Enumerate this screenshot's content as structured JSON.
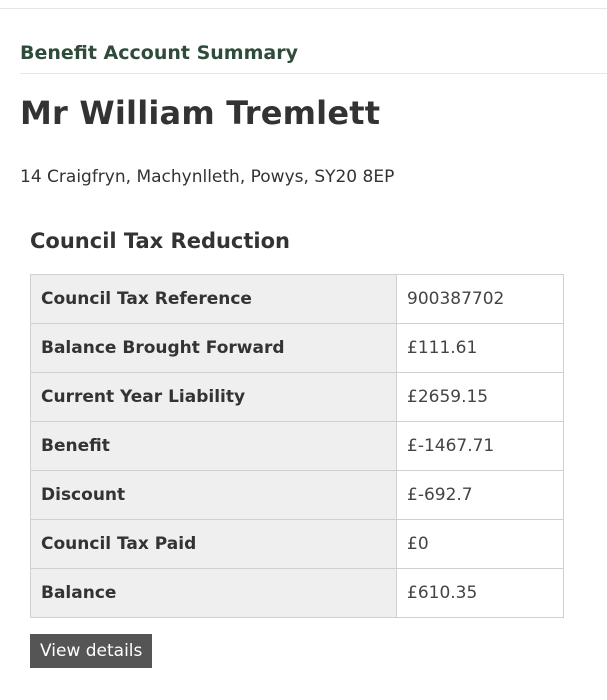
{
  "page": {
    "section_heading": "Benefit Account Summary",
    "name": "Mr William Tremlett",
    "address": "14 Craigfryn, Machynlleth, Powys, SY20 8EP"
  },
  "council_tax": {
    "heading": "Council Tax Reduction",
    "rows": [
      {
        "label": "Council Tax Reference",
        "value": "900387702"
      },
      {
        "label": "Balance Brought Forward",
        "value": "£111.61"
      },
      {
        "label": "Current Year Liability",
        "value": "£2659.15"
      },
      {
        "label": "Benefit",
        "value": "£-1467.71"
      },
      {
        "label": "Discount",
        "value": "£-692.7"
      },
      {
        "label": "Council Tax Paid",
        "value": "£0"
      },
      {
        "label": "Balance",
        "value": "£610.35"
      }
    ],
    "view_details_label": "View details"
  }
}
